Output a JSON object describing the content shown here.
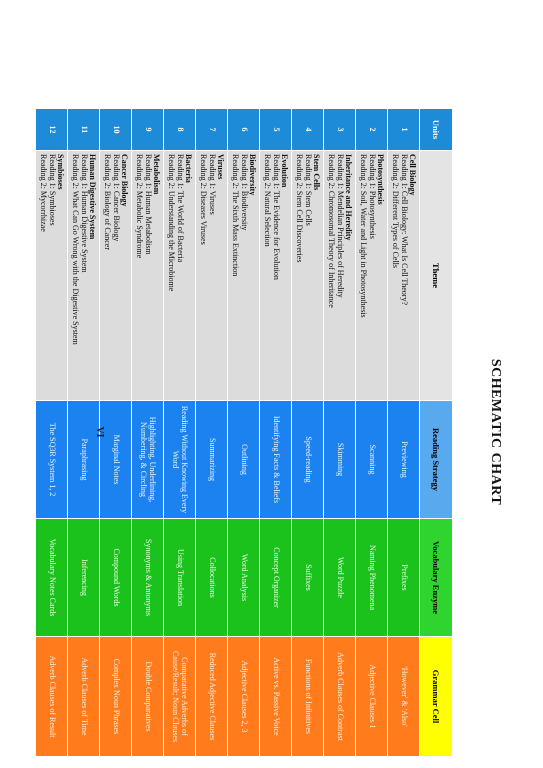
{
  "title": "SCHEMATIC CHART",
  "page_number": "VI",
  "headers": {
    "units": "Units",
    "theme": "Theme",
    "strategy": "Reading Strategy",
    "vocabulary": "Vocabulary Enzyme",
    "grammar": "Grammar Cell"
  },
  "colors": {
    "units_header": "#1d8bd8",
    "theme_header": "#e4e4e4",
    "strategy_header": "#59a9ee",
    "vocabulary_header": "#2fd42f",
    "grammar_header": "#ffff00",
    "strategy_cell": "#1c82f0",
    "vocabulary_cell": "#1bc21b",
    "grammar_cell": "#ff7b1c"
  },
  "rows": [
    {
      "unit": "1",
      "theme": "Cell Biology",
      "reading1": "Reading 1: Cell Biology: What Is Cell Theory?",
      "reading2": "Reading 2: Different Types of Cells",
      "strategy": "Previewing",
      "vocabulary": "Prefixes",
      "grammar": "'However' & 'Also'"
    },
    {
      "unit": "2",
      "theme": "Photosynthesis",
      "reading1": "Reading 1: Photosynthesis",
      "reading2": "Reading 2: Soil, Water and Light in Photosynthesis",
      "strategy": "Scanning",
      "vocabulary": "Naming Phenomena",
      "grammar": "Adjective Clauses 1"
    },
    {
      "unit": "3",
      "theme": "Inheritance and Heredity",
      "reading1": "Reading 1: Mendelian Principles of Heredity",
      "reading2": "Reading 2: Chromosomal Theory of Inheritance",
      "strategy": "Skimming",
      "vocabulary": "Word Puzzle",
      "grammar": "Adverb Clauses of Contrast"
    },
    {
      "unit": "4",
      "theme": "Stem Cells",
      "reading1": "Reading 1: Stem Cells",
      "reading2": "Reading 2: Stem Cell Discoveries",
      "strategy": "Speed-reading",
      "vocabulary": "Suffixes",
      "grammar": "Functions of Infinitives"
    },
    {
      "unit": "5",
      "theme": "Evolution",
      "reading1": "Reading 1: The Evidence for Evolution",
      "reading2": "Reading 2: Natural Selection",
      "strategy": "Identifying Facts & Beliefs",
      "vocabulary": "Concept Organizer",
      "grammar": "Active vs. Passive Voice"
    },
    {
      "unit": "6",
      "theme": "Biodiversity",
      "reading1": "Reading 1: Biodiversity",
      "reading2": "Reading 2: The Sixth Mass Extinction",
      "strategy": "Outlining",
      "vocabulary": "Word Analysis",
      "grammar": "Adjective Clauses 2, 3"
    },
    {
      "unit": "7",
      "theme": "Viruses",
      "reading1": "Reading 1: Viruses",
      "reading2": "Reading 2: Diseases Viruses",
      "strategy": "Summarizing",
      "vocabulary": "Collocations",
      "grammar": "Reduced Adjective Clauses"
    },
    {
      "unit": "8",
      "theme": "Bacteria",
      "reading1": "Reading 1: The World of Bacteria",
      "reading2": "Reading 2: Understanding the Microbiome",
      "strategy": "Reading Without Knowing Every Word",
      "vocabulary": "Using Translation",
      "grammar": "Comparative Adverbs of Cause/Result; Noun Clauses"
    },
    {
      "unit": "9",
      "theme": "Metabolism",
      "reading1": "Reading 1: Human Metabolism",
      "reading2": "Reading 2: Metabolic Syndrome",
      "strategy": "Highlighting, Underlining, Numbering, & Circling",
      "vocabulary": "Synonyms & Antonyms",
      "grammar": "Double Comparatives"
    },
    {
      "unit": "10",
      "theme": "Cancer Biology",
      "reading1": "Reading 1: Cancer Biology",
      "reading2": "Reading 2: Biology of Cancer",
      "strategy": "Marginal Notes",
      "vocabulary": "Compound Words",
      "grammar": "Complex Noun Phrases"
    },
    {
      "unit": "11",
      "theme": "Human Digestive System",
      "reading1": "Reading 1: Human Digestive System",
      "reading2": "Reading 2: What Can Go Wrong with the Digestive System",
      "strategy": "Paraphrasing",
      "vocabulary": "Inferencing",
      "grammar": "Adverb Clauses of Time"
    },
    {
      "unit": "12",
      "theme": "Symbioses",
      "reading1": "Reading 1: Symbioses",
      "reading2": "Reading 2: Mycorrhizae",
      "strategy": "The SQ3R System 1, 2",
      "vocabulary": "Vocabulary Notes Cards",
      "grammar": "Adverb Clauses of Result"
    }
  ]
}
